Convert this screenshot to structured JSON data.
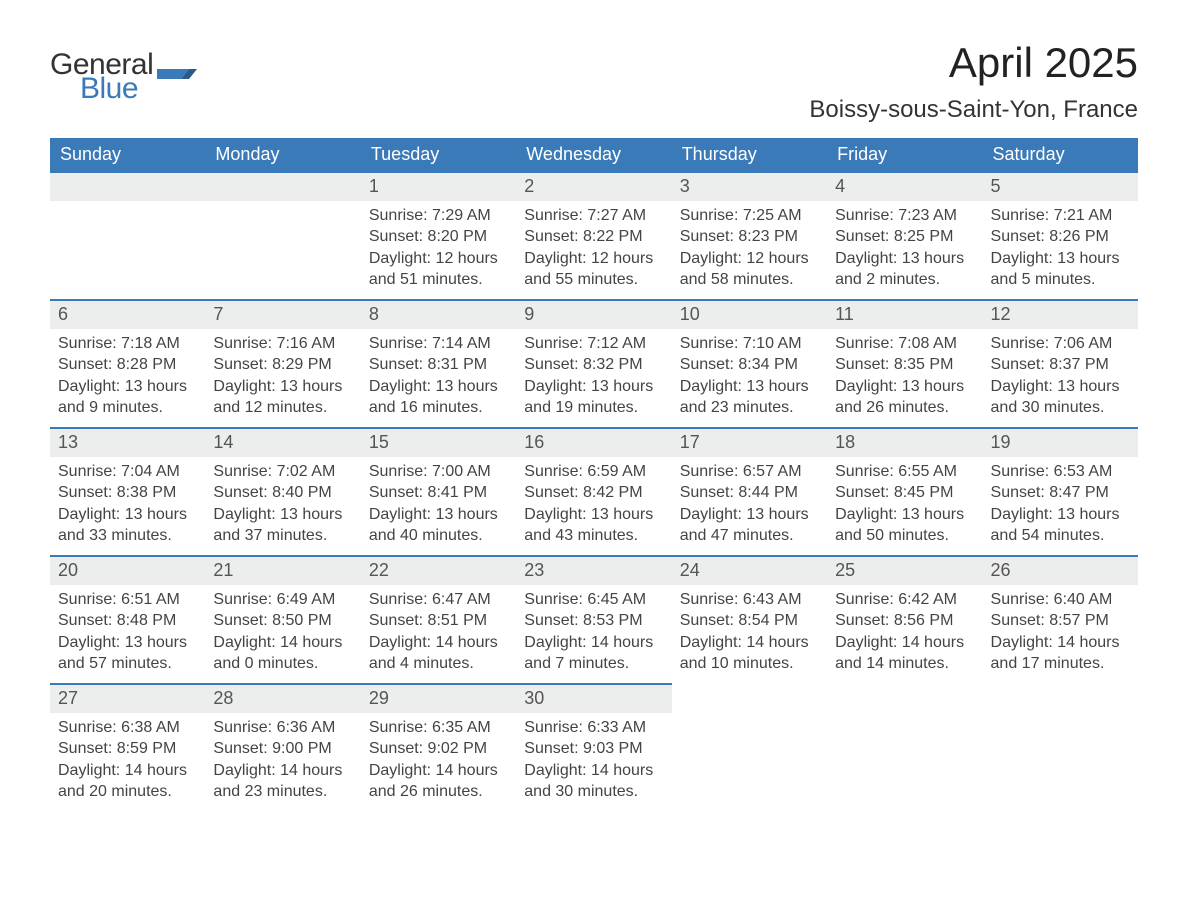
{
  "logo": {
    "general": "General",
    "blue": "Blue"
  },
  "title": "April 2025",
  "location": "Boissy-sous-Saint-Yon, France",
  "colors": {
    "header_bg": "#3b7ab8",
    "header_text": "#ffffff",
    "daybar_bg": "#eceded",
    "daybar_border": "#3b7ab8",
    "body_text": "#444444",
    "page_bg": "#ffffff"
  },
  "weekdays": [
    "Sunday",
    "Monday",
    "Tuesday",
    "Wednesday",
    "Thursday",
    "Friday",
    "Saturday"
  ],
  "weeks": [
    [
      null,
      null,
      {
        "n": "1",
        "sunrise": "Sunrise: 7:29 AM",
        "sunset": "Sunset: 8:20 PM",
        "day1": "Daylight: 12 hours",
        "day2": "and 51 minutes."
      },
      {
        "n": "2",
        "sunrise": "Sunrise: 7:27 AM",
        "sunset": "Sunset: 8:22 PM",
        "day1": "Daylight: 12 hours",
        "day2": "and 55 minutes."
      },
      {
        "n": "3",
        "sunrise": "Sunrise: 7:25 AM",
        "sunset": "Sunset: 8:23 PM",
        "day1": "Daylight: 12 hours",
        "day2": "and 58 minutes."
      },
      {
        "n": "4",
        "sunrise": "Sunrise: 7:23 AM",
        "sunset": "Sunset: 8:25 PM",
        "day1": "Daylight: 13 hours",
        "day2": "and 2 minutes."
      },
      {
        "n": "5",
        "sunrise": "Sunrise: 7:21 AM",
        "sunset": "Sunset: 8:26 PM",
        "day1": "Daylight: 13 hours",
        "day2": "and 5 minutes."
      }
    ],
    [
      {
        "n": "6",
        "sunrise": "Sunrise: 7:18 AM",
        "sunset": "Sunset: 8:28 PM",
        "day1": "Daylight: 13 hours",
        "day2": "and 9 minutes."
      },
      {
        "n": "7",
        "sunrise": "Sunrise: 7:16 AM",
        "sunset": "Sunset: 8:29 PM",
        "day1": "Daylight: 13 hours",
        "day2": "and 12 minutes."
      },
      {
        "n": "8",
        "sunrise": "Sunrise: 7:14 AM",
        "sunset": "Sunset: 8:31 PM",
        "day1": "Daylight: 13 hours",
        "day2": "and 16 minutes."
      },
      {
        "n": "9",
        "sunrise": "Sunrise: 7:12 AM",
        "sunset": "Sunset: 8:32 PM",
        "day1": "Daylight: 13 hours",
        "day2": "and 19 minutes."
      },
      {
        "n": "10",
        "sunrise": "Sunrise: 7:10 AM",
        "sunset": "Sunset: 8:34 PM",
        "day1": "Daylight: 13 hours",
        "day2": "and 23 minutes."
      },
      {
        "n": "11",
        "sunrise": "Sunrise: 7:08 AM",
        "sunset": "Sunset: 8:35 PM",
        "day1": "Daylight: 13 hours",
        "day2": "and 26 minutes."
      },
      {
        "n": "12",
        "sunrise": "Sunrise: 7:06 AM",
        "sunset": "Sunset: 8:37 PM",
        "day1": "Daylight: 13 hours",
        "day2": "and 30 minutes."
      }
    ],
    [
      {
        "n": "13",
        "sunrise": "Sunrise: 7:04 AM",
        "sunset": "Sunset: 8:38 PM",
        "day1": "Daylight: 13 hours",
        "day2": "and 33 minutes."
      },
      {
        "n": "14",
        "sunrise": "Sunrise: 7:02 AM",
        "sunset": "Sunset: 8:40 PM",
        "day1": "Daylight: 13 hours",
        "day2": "and 37 minutes."
      },
      {
        "n": "15",
        "sunrise": "Sunrise: 7:00 AM",
        "sunset": "Sunset: 8:41 PM",
        "day1": "Daylight: 13 hours",
        "day2": "and 40 minutes."
      },
      {
        "n": "16",
        "sunrise": "Sunrise: 6:59 AM",
        "sunset": "Sunset: 8:42 PM",
        "day1": "Daylight: 13 hours",
        "day2": "and 43 minutes."
      },
      {
        "n": "17",
        "sunrise": "Sunrise: 6:57 AM",
        "sunset": "Sunset: 8:44 PM",
        "day1": "Daylight: 13 hours",
        "day2": "and 47 minutes."
      },
      {
        "n": "18",
        "sunrise": "Sunrise: 6:55 AM",
        "sunset": "Sunset: 8:45 PM",
        "day1": "Daylight: 13 hours",
        "day2": "and 50 minutes."
      },
      {
        "n": "19",
        "sunrise": "Sunrise: 6:53 AM",
        "sunset": "Sunset: 8:47 PM",
        "day1": "Daylight: 13 hours",
        "day2": "and 54 minutes."
      }
    ],
    [
      {
        "n": "20",
        "sunrise": "Sunrise: 6:51 AM",
        "sunset": "Sunset: 8:48 PM",
        "day1": "Daylight: 13 hours",
        "day2": "and 57 minutes."
      },
      {
        "n": "21",
        "sunrise": "Sunrise: 6:49 AM",
        "sunset": "Sunset: 8:50 PM",
        "day1": "Daylight: 14 hours",
        "day2": "and 0 minutes."
      },
      {
        "n": "22",
        "sunrise": "Sunrise: 6:47 AM",
        "sunset": "Sunset: 8:51 PM",
        "day1": "Daylight: 14 hours",
        "day2": "and 4 minutes."
      },
      {
        "n": "23",
        "sunrise": "Sunrise: 6:45 AM",
        "sunset": "Sunset: 8:53 PM",
        "day1": "Daylight: 14 hours",
        "day2": "and 7 minutes."
      },
      {
        "n": "24",
        "sunrise": "Sunrise: 6:43 AM",
        "sunset": "Sunset: 8:54 PM",
        "day1": "Daylight: 14 hours",
        "day2": "and 10 minutes."
      },
      {
        "n": "25",
        "sunrise": "Sunrise: 6:42 AM",
        "sunset": "Sunset: 8:56 PM",
        "day1": "Daylight: 14 hours",
        "day2": "and 14 minutes."
      },
      {
        "n": "26",
        "sunrise": "Sunrise: 6:40 AM",
        "sunset": "Sunset: 8:57 PM",
        "day1": "Daylight: 14 hours",
        "day2": "and 17 minutes."
      }
    ],
    [
      {
        "n": "27",
        "sunrise": "Sunrise: 6:38 AM",
        "sunset": "Sunset: 8:59 PM",
        "day1": "Daylight: 14 hours",
        "day2": "and 20 minutes."
      },
      {
        "n": "28",
        "sunrise": "Sunrise: 6:36 AM",
        "sunset": "Sunset: 9:00 PM",
        "day1": "Daylight: 14 hours",
        "day2": "and 23 minutes."
      },
      {
        "n": "29",
        "sunrise": "Sunrise: 6:35 AM",
        "sunset": "Sunset: 9:02 PM",
        "day1": "Daylight: 14 hours",
        "day2": "and 26 minutes."
      },
      {
        "n": "30",
        "sunrise": "Sunrise: 6:33 AM",
        "sunset": "Sunset: 9:03 PM",
        "day1": "Daylight: 14 hours",
        "day2": "and 30 minutes."
      },
      null,
      null,
      null
    ]
  ]
}
